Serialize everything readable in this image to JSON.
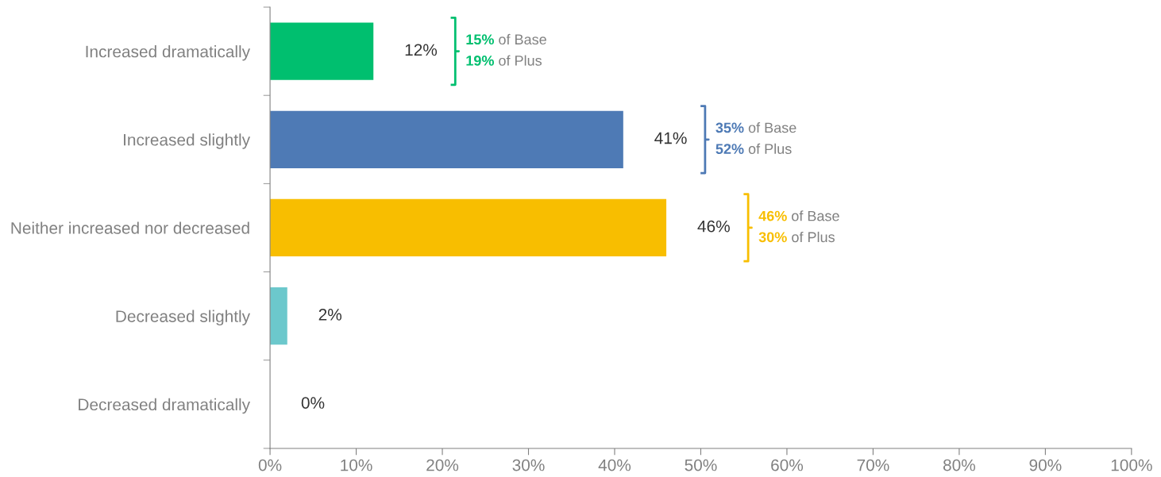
{
  "chart_data": {
    "type": "bar",
    "orientation": "horizontal",
    "categories": [
      "Increased dramatically",
      "Increased slightly",
      "Neither increased nor decreased",
      "Decreased slightly",
      "Decreased dramatically"
    ],
    "values": [
      12,
      41,
      46,
      2,
      0
    ],
    "colors": [
      "#00bf6f",
      "#4e7ab5",
      "#f8be00",
      "#6cc8cc",
      "#6cc8cc"
    ],
    "value_labels": [
      "12%",
      "41%",
      "46%",
      "2%",
      "0%"
    ],
    "xlim": [
      0,
      100
    ],
    "xticks": [
      {
        "value": 0,
        "label": "0%"
      },
      {
        "value": 10,
        "label": "10%"
      },
      {
        "value": 20,
        "label": "20%"
      },
      {
        "value": 30,
        "label": "30%"
      },
      {
        "value": 40,
        "label": "40%"
      },
      {
        "value": 50,
        "label": "50%"
      },
      {
        "value": 60,
        "label": "60%"
      },
      {
        "value": 70,
        "label": "70%"
      },
      {
        "value": 80,
        "label": "80%"
      },
      {
        "value": 90,
        "label": "90%"
      },
      {
        "value": 100,
        "label": "100%"
      }
    ],
    "annotations": [
      "15% of Base",
      "19% of Plus",
      "35% of Base",
      "52% of Plus",
      "46% of Base",
      "30% of Plus"
    ],
    "grid": false,
    "legend": false
  }
}
